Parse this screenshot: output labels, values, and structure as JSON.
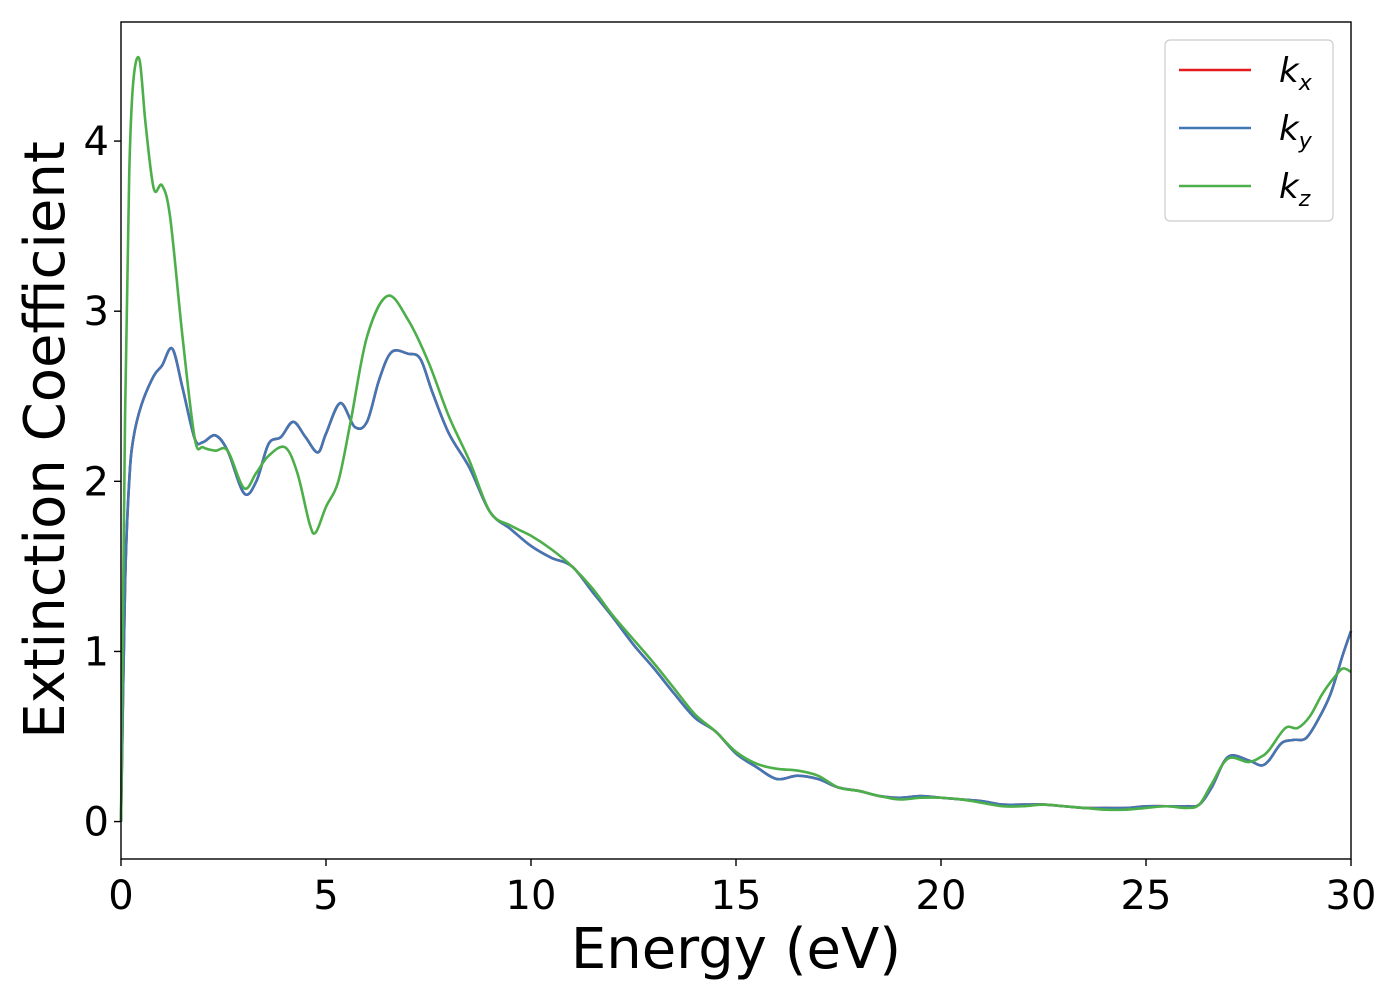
{
  "chart_data": {
    "type": "line",
    "title": "",
    "xlabel": "Energy (eV)",
    "ylabel": "Extinction Coefficient",
    "xlim": [
      0,
      30
    ],
    "ylim": [
      -0.22,
      4.7
    ],
    "xticks": [
      0,
      5,
      10,
      15,
      20,
      25,
      30
    ],
    "xtick_labels": [
      "0",
      "5",
      "10",
      "15",
      "20",
      "25",
      "30"
    ],
    "yticks": [
      0,
      1,
      2,
      3,
      4
    ],
    "ytick_labels": [
      "0",
      "1",
      "2",
      "3",
      "4"
    ],
    "grid": false,
    "legend_position": "top-right",
    "series": [
      {
        "name": "k_x",
        "legend_base": "k",
        "legend_sub": "x",
        "color": "#e41a1c",
        "x": [
          0,
          0.1,
          0.2,
          0.3,
          0.5,
          0.8,
          1.0,
          1.25,
          1.5,
          1.8,
          2.0,
          2.3,
          2.6,
          3.0,
          3.3,
          3.6,
          3.9,
          4.2,
          4.5,
          4.8,
          5.0,
          5.35,
          5.7,
          6.0,
          6.3,
          6.6,
          7.0,
          7.3,
          7.6,
          8.0,
          8.5,
          9.0,
          9.5,
          10.0,
          10.5,
          11.0,
          11.5,
          12.0,
          12.5,
          13.0,
          13.5,
          14.0,
          14.5,
          15.0,
          15.5,
          16.0,
          16.5,
          17.0,
          17.5,
          18.0,
          18.5,
          19.0,
          19.5,
          20.0,
          20.5,
          21.0,
          21.5,
          22.0,
          22.5,
          23.0,
          23.5,
          24.0,
          24.5,
          25.0,
          25.5,
          26.0,
          26.3,
          26.6,
          27.0,
          27.5,
          27.8,
          28.0,
          28.3,
          28.6,
          28.9,
          29.2,
          29.5,
          29.8,
          30.0
        ],
        "y": [
          0,
          1.4,
          2.0,
          2.25,
          2.45,
          2.62,
          2.68,
          2.78,
          2.55,
          2.25,
          2.23,
          2.27,
          2.18,
          1.93,
          2.0,
          2.22,
          2.26,
          2.35,
          2.26,
          2.17,
          2.28,
          2.46,
          2.32,
          2.35,
          2.6,
          2.76,
          2.75,
          2.72,
          2.52,
          2.28,
          2.08,
          1.82,
          1.72,
          1.62,
          1.55,
          1.5,
          1.35,
          1.2,
          1.04,
          0.9,
          0.75,
          0.61,
          0.53,
          0.4,
          0.32,
          0.25,
          0.27,
          0.25,
          0.2,
          0.18,
          0.15,
          0.14,
          0.15,
          0.14,
          0.13,
          0.12,
          0.1,
          0.1,
          0.1,
          0.09,
          0.08,
          0.08,
          0.08,
          0.09,
          0.09,
          0.09,
          0.1,
          0.2,
          0.38,
          0.36,
          0.33,
          0.36,
          0.46,
          0.48,
          0.49,
          0.6,
          0.75,
          0.98,
          1.12
        ]
      },
      {
        "name": "k_y",
        "legend_base": "k",
        "legend_sub": "y",
        "color": "#4277b5",
        "x": [
          0,
          0.1,
          0.2,
          0.3,
          0.5,
          0.8,
          1.0,
          1.25,
          1.5,
          1.8,
          2.0,
          2.3,
          2.6,
          3.0,
          3.3,
          3.6,
          3.9,
          4.2,
          4.5,
          4.8,
          5.0,
          5.35,
          5.7,
          6.0,
          6.3,
          6.6,
          7.0,
          7.3,
          7.6,
          8.0,
          8.5,
          9.0,
          9.5,
          10.0,
          10.5,
          11.0,
          11.5,
          12.0,
          12.5,
          13.0,
          13.5,
          14.0,
          14.5,
          15.0,
          15.5,
          16.0,
          16.5,
          17.0,
          17.5,
          18.0,
          18.5,
          19.0,
          19.5,
          20.0,
          20.5,
          21.0,
          21.5,
          22.0,
          22.5,
          23.0,
          23.5,
          24.0,
          24.5,
          25.0,
          25.5,
          26.0,
          26.3,
          26.6,
          27.0,
          27.5,
          27.8,
          28.0,
          28.3,
          28.6,
          28.9,
          29.2,
          29.5,
          29.8,
          30.0
        ],
        "y": [
          0,
          1.4,
          2.0,
          2.25,
          2.45,
          2.62,
          2.68,
          2.78,
          2.55,
          2.25,
          2.23,
          2.27,
          2.18,
          1.93,
          2.0,
          2.22,
          2.26,
          2.35,
          2.26,
          2.17,
          2.28,
          2.46,
          2.32,
          2.35,
          2.6,
          2.76,
          2.75,
          2.72,
          2.52,
          2.28,
          2.08,
          1.82,
          1.72,
          1.62,
          1.55,
          1.5,
          1.35,
          1.2,
          1.04,
          0.9,
          0.75,
          0.61,
          0.53,
          0.4,
          0.32,
          0.25,
          0.27,
          0.25,
          0.2,
          0.18,
          0.15,
          0.14,
          0.15,
          0.14,
          0.13,
          0.12,
          0.1,
          0.1,
          0.1,
          0.09,
          0.08,
          0.08,
          0.08,
          0.09,
          0.09,
          0.09,
          0.1,
          0.2,
          0.38,
          0.36,
          0.33,
          0.36,
          0.46,
          0.48,
          0.49,
          0.6,
          0.75,
          0.98,
          1.12
        ]
      },
      {
        "name": "k_z",
        "legend_base": "k",
        "legend_sub": "z",
        "color": "#4daf4a",
        "x": [
          0,
          0.1,
          0.2,
          0.3,
          0.45,
          0.6,
          0.8,
          1.0,
          1.2,
          1.5,
          1.8,
          2.0,
          2.3,
          2.6,
          3.0,
          3.3,
          3.6,
          4.0,
          4.3,
          4.6,
          4.75,
          5.0,
          5.3,
          5.6,
          6.0,
          6.5,
          7.0,
          7.5,
          8.0,
          8.5,
          9.0,
          9.5,
          10.0,
          10.5,
          11.0,
          11.5,
          12.0,
          12.5,
          13.0,
          13.5,
          14.0,
          14.5,
          15.0,
          15.5,
          16.0,
          16.5,
          17.0,
          17.5,
          18.0,
          18.5,
          19.0,
          19.5,
          20.0,
          20.5,
          21.0,
          21.5,
          22.0,
          22.5,
          23.0,
          23.5,
          24.0,
          24.5,
          25.0,
          25.5,
          26.0,
          26.3,
          26.6,
          27.0,
          27.5,
          27.8,
          28.0,
          28.4,
          28.7,
          29.0,
          29.3,
          29.6,
          29.8,
          30.0
        ],
        "y": [
          0,
          2.4,
          3.8,
          4.35,
          4.48,
          4.1,
          3.72,
          3.74,
          3.55,
          2.85,
          2.25,
          2.2,
          2.18,
          2.18,
          1.96,
          2.05,
          2.15,
          2.2,
          2.05,
          1.75,
          1.7,
          1.85,
          2.0,
          2.35,
          2.85,
          3.09,
          2.95,
          2.7,
          2.38,
          2.12,
          1.82,
          1.74,
          1.68,
          1.6,
          1.5,
          1.37,
          1.21,
          1.07,
          0.93,
          0.78,
          0.63,
          0.53,
          0.41,
          0.34,
          0.31,
          0.3,
          0.27,
          0.2,
          0.18,
          0.15,
          0.13,
          0.14,
          0.14,
          0.13,
          0.11,
          0.09,
          0.09,
          0.1,
          0.09,
          0.08,
          0.07,
          0.07,
          0.08,
          0.09,
          0.08,
          0.1,
          0.22,
          0.37,
          0.35,
          0.38,
          0.42,
          0.55,
          0.55,
          0.62,
          0.75,
          0.85,
          0.9,
          0.88
        ]
      }
    ]
  }
}
